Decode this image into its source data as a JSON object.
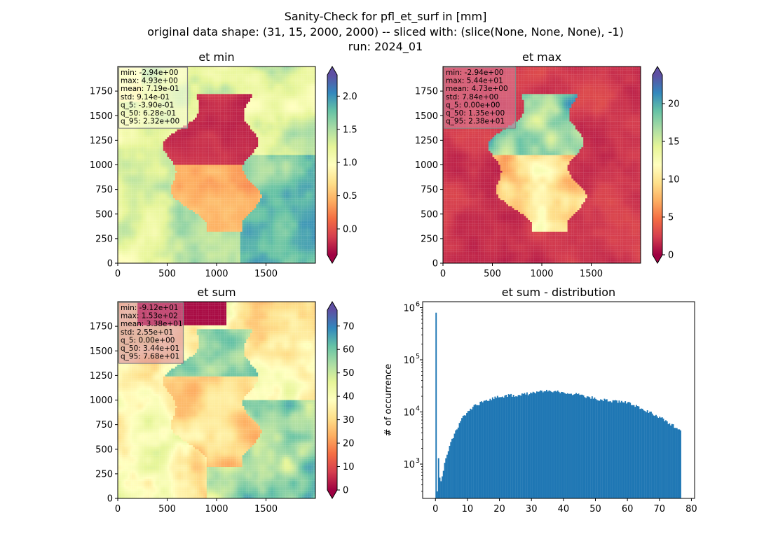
{
  "figure": {
    "title_line1": "Sanity-Check for pfl_et_surf in [mm]",
    "title_line2": "original data shape: (31, 15, 2000, 2000) -- sliced with: (slice(None, None, None), -1)",
    "title_line3": "run: 2024_01"
  },
  "colors": {
    "axes": "#000000",
    "hist_bar": "#1f77b4",
    "cmap_spectral": [
      "#9e0142",
      "#d53e4f",
      "#f46d43",
      "#fdae61",
      "#fee08b",
      "#ffffbf",
      "#e6f598",
      "#abdda4",
      "#66c2a5",
      "#3288bd",
      "#5e4fa2"
    ],
    "stats_box_light": "#ffffe0",
    "stats_box_pink": "#d9809a"
  },
  "chart_data": [
    {
      "type": "heatmap",
      "title": "et min",
      "colormap": "Spectral",
      "x_ticks": [
        "0",
        "500",
        "1000",
        "1500"
      ],
      "y_ticks": [
        "0",
        "250",
        "500",
        "750",
        "1000",
        "1250",
        "1500",
        "1750"
      ],
      "xlim": [
        0,
        2000
      ],
      "ylim": [
        0,
        2000
      ],
      "colorbar": {
        "vmin": -0.39,
        "vmax": 2.32,
        "ticks": [
          0.0,
          0.5,
          1.0,
          1.5,
          2.0
        ],
        "tick_labels": [
          "0.0",
          "0.5",
          "1.0",
          "1.5",
          "2.0"
        ]
      },
      "stats": [
        "min: -2.94e+00",
        "max: 4.93e+00",
        "mean: 7.19e-01",
        "std: 9.14e-01",
        "q_5: -3.90e-01",
        "q_50: 6.28e-01",
        "q_95: 2.32e+00"
      ]
    },
    {
      "type": "heatmap",
      "title": "et max",
      "colormap": "Spectral",
      "x_ticks": [
        "0",
        "500",
        "1000",
        "1500"
      ],
      "y_ticks": [
        "0",
        "250",
        "500",
        "750",
        "1000",
        "1250",
        "1500",
        "1750"
      ],
      "xlim": [
        0,
        2000
      ],
      "ylim": [
        0,
        2000
      ],
      "colorbar": {
        "vmin": 0.0,
        "vmax": 23.8,
        "ticks": [
          0,
          5,
          10,
          15,
          20
        ],
        "tick_labels": [
          "0",
          "5",
          "10",
          "15",
          "20"
        ]
      },
      "stats": [
        "min: -2.94e+00",
        "max: 5.44e+01",
        "mean: 4.73e+00",
        "std: 7.84e+00",
        "q_5: 0.00e+00",
        "q_50: 1.35e+00",
        "q_95: 2.38e+01"
      ]
    },
    {
      "type": "heatmap",
      "title": "et sum",
      "colormap": "Spectral",
      "x_ticks": [
        "0",
        "500",
        "1000",
        "1500"
      ],
      "y_ticks": [
        "0",
        "250",
        "500",
        "750",
        "1000",
        "1250",
        "1500",
        "1750"
      ],
      "xlim": [
        0,
        2000
      ],
      "ylim": [
        0,
        2000
      ],
      "colorbar": {
        "vmin": 0.0,
        "vmax": 76.8,
        "ticks": [
          0,
          10,
          20,
          30,
          40,
          50,
          60,
          70
        ],
        "tick_labels": [
          "0",
          "10",
          "20",
          "30",
          "40",
          "50",
          "60",
          "70"
        ]
      },
      "stats": [
        "min: -9.12e+01",
        "max: 1.53e+02",
        "mean: 3.38e+01",
        "std: 2.55e+01",
        "q_5: 0.00e+00",
        "q_50: 3.44e+01",
        "q_95: 7.68e+01"
      ]
    },
    {
      "type": "bar",
      "subtype": "histogram",
      "title": "et sum - distribution",
      "ylabel": "# of occurrence",
      "y_scale": "log",
      "xlim": [
        -4,
        81
      ],
      "ylim": [
        220,
        1300000
      ],
      "x_ticks": [
        0,
        10,
        20,
        30,
        40,
        50,
        60,
        70,
        80
      ],
      "x_tick_labels": [
        "0",
        "10",
        "20",
        "30",
        "40",
        "50",
        "60",
        "70",
        "80"
      ],
      "y_ticks": [
        1000,
        10000,
        100000,
        1000000
      ],
      "y_tick_base": "10",
      "y_tick_exponents": [
        "3",
        "4",
        "5",
        "6"
      ],
      "bin_range": [
        0,
        76.8
      ],
      "bins": 200,
      "peaks": [
        {
          "x": 0.0,
          "count": 800000
        },
        {
          "x": 0.4,
          "count": 300
        },
        {
          "x": 0.8,
          "count": 1300
        },
        {
          "x": 1.2,
          "count": 550
        }
      ],
      "profile": [
        {
          "x": 1.5,
          "count": 450
        },
        {
          "x": 3,
          "count": 1300
        },
        {
          "x": 5,
          "count": 3000
        },
        {
          "x": 8,
          "count": 7500
        },
        {
          "x": 12,
          "count": 13000
        },
        {
          "x": 16,
          "count": 17000
        },
        {
          "x": 20,
          "count": 20000
        },
        {
          "x": 25,
          "count": 21000
        },
        {
          "x": 30,
          "count": 23000
        },
        {
          "x": 35,
          "count": 26000
        },
        {
          "x": 40,
          "count": 24000
        },
        {
          "x": 45,
          "count": 21000
        },
        {
          "x": 50,
          "count": 18000
        },
        {
          "x": 55,
          "count": 16000
        },
        {
          "x": 60,
          "count": 15000
        },
        {
          "x": 65,
          "count": 11000
        },
        {
          "x": 70,
          "count": 8000
        },
        {
          "x": 75,
          "count": 5000
        },
        {
          "x": 76.8,
          "count": 4500
        }
      ]
    }
  ]
}
